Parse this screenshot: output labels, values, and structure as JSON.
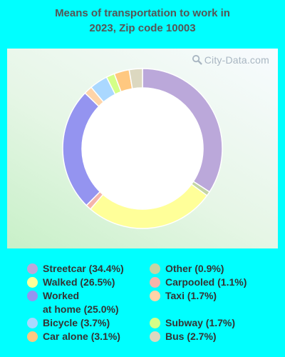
{
  "title_line1": "Means of transportation to work in",
  "title_line2": "2023, Zip code 10003",
  "watermark": "City-Data.com",
  "chart_data": {
    "type": "pie",
    "subtype": "donut",
    "title": "Means of transportation to work in 2023, Zip code 10003",
    "series": [
      {
        "name": "Streetcar",
        "value": 34.4,
        "label": "Streetcar (34.4%)",
        "color": "#bba8da"
      },
      {
        "name": "Other",
        "value": 0.9,
        "label": "Other (0.9%)",
        "color": "#c4d4a4"
      },
      {
        "name": "Walked",
        "value": 26.5,
        "label": "Walked (26.5%)",
        "color": "#ffff99"
      },
      {
        "name": "Carpooled",
        "value": 1.1,
        "label": "Carpooled (1.1%)",
        "color": "#f4b4aa"
      },
      {
        "name": "Worked at home",
        "value": 25.0,
        "label_line1": "Worked",
        "label_line2": "at home (25.0%)",
        "color": "#9494f0"
      },
      {
        "name": "Taxi",
        "value": 1.7,
        "label": "Taxi (1.7%)",
        "color": "#ffd4a8"
      },
      {
        "name": "Bicycle",
        "value": 3.7,
        "label": "Bicycle (3.7%)",
        "color": "#aad8ff"
      },
      {
        "name": "Subway",
        "value": 1.7,
        "label": "Subway (1.7%)",
        "color": "#d4ff88"
      },
      {
        "name": "Car alone",
        "value": 3.1,
        "label": "Car alone (3.1%)",
        "color": "#ffc880"
      },
      {
        "name": "Bus",
        "value": 2.7,
        "label": "Bus (2.7%)",
        "color": "#dcd8c0"
      }
    ],
    "legend_placement": "bottom"
  }
}
